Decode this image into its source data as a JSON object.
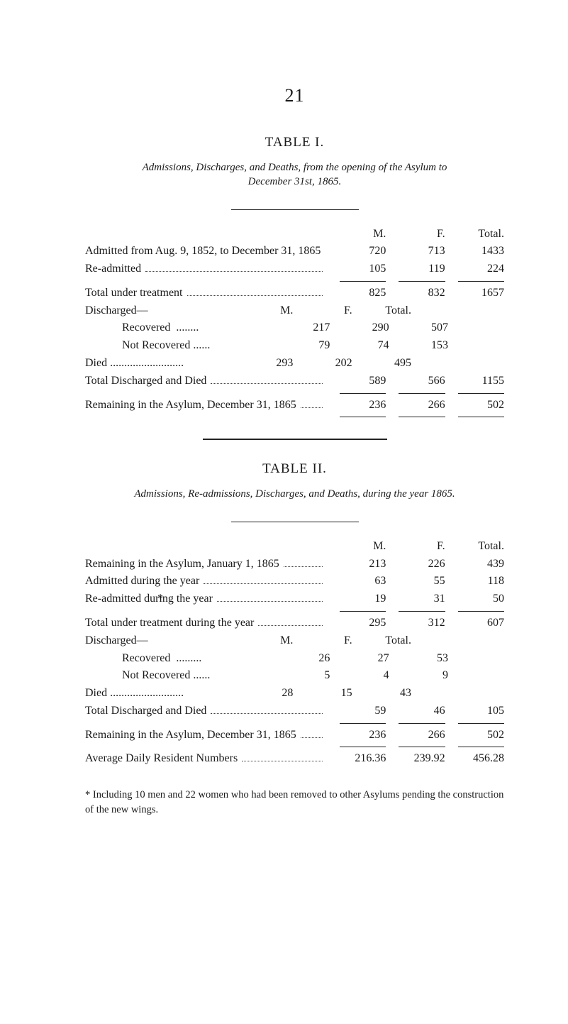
{
  "page_number": "21",
  "table1": {
    "title": "TABLE I.",
    "subtitle_l1": "Admissions, Discharges, and Deaths, from the opening of the Asylum to",
    "subtitle_l2": "December 31st, 1865.",
    "head_M": "M.",
    "head_F": "F.",
    "head_Total": "Total.",
    "admitted_label": "Admitted from Aug. 9, 1852, to December 31, 1865",
    "admitted": {
      "m": "720",
      "f": "713",
      "t": "1433"
    },
    "readmitted_label": "Re-admitted",
    "readmitted": {
      "m": "105",
      "f": "119",
      "t": "224"
    },
    "total_under_label": "Total under treatment",
    "total_under": {
      "m": "825",
      "f": "832",
      "t": "1657"
    },
    "discharged_label": "Discharged—",
    "sub_head_M": "M.",
    "sub_head_F": "F.",
    "sub_head_Total": "Total.",
    "recovered_label": "Recovered",
    "recovered": {
      "m": "217",
      "f": "290",
      "t": "507"
    },
    "notrecovered_label": "Not Recovered",
    "notrecovered": {
      "m": "79",
      "f": "74",
      "t": "153"
    },
    "died_label": "Died",
    "died": {
      "m": "293",
      "f": "202",
      "t": "495"
    },
    "total_dd_label": "Total Discharged and Died",
    "total_dd": {
      "m": "589",
      "f": "566",
      "t": "1155"
    },
    "remaining_label": "Remaining in the Asylum, December 31, 1865",
    "remaining": {
      "m": "236",
      "f": "266",
      "t": "502"
    }
  },
  "table2": {
    "title": "TABLE II.",
    "subtitle": "Admissions, Re-admissions, Discharges, and Deaths, during the year 1865.",
    "head_M": "M.",
    "head_F": "F.",
    "head_Total": "Total.",
    "remaining_jan_label": "Remaining in the Asylum, January 1, 1865",
    "remaining_jan": {
      "m": "213",
      "f": "226",
      "t": "439"
    },
    "admitted_year_label": "Admitted during the year",
    "admitted_year": {
      "m": "63",
      "f": "55",
      "t": "118"
    },
    "aster": "*",
    "readmitted_year_label": "Re-admitted during the year",
    "readmitted_year": {
      "m": "19",
      "f": "31",
      "t": "50"
    },
    "total_under_year_label": "Total under treatment during the year",
    "total_under_year": {
      "m": "295",
      "f": "312",
      "t": "607"
    },
    "discharged_label": "Discharged—",
    "sub_head_M": "M.",
    "sub_head_F": "F.",
    "sub_head_Total": "Total.",
    "recovered_label": "Recovered",
    "recovered": {
      "m": "26",
      "f": "27",
      "t": "53"
    },
    "notrecovered_label": "Not Recovered",
    "notrecovered": {
      "m": "5",
      "f": "4",
      "t": "9"
    },
    "died_label": "Died",
    "died": {
      "m": "28",
      "f": "15",
      "t": "43"
    },
    "total_dd_label": "Total Discharged and Died",
    "total_dd": {
      "m": "59",
      "f": "46",
      "t": "105"
    },
    "remaining_dec_label": "Remaining in the Asylum, December 31, 1865",
    "remaining_dec": {
      "m": "236",
      "f": "266",
      "t": "502"
    },
    "avg_label": "Average Daily Resident Numbers",
    "avg": {
      "m": "216.36",
      "f": "239.92",
      "t": "456.28"
    }
  },
  "footnote": "* Including 10 men and 22 women who had been removed to other Asylums pending the construction of the new wings."
}
